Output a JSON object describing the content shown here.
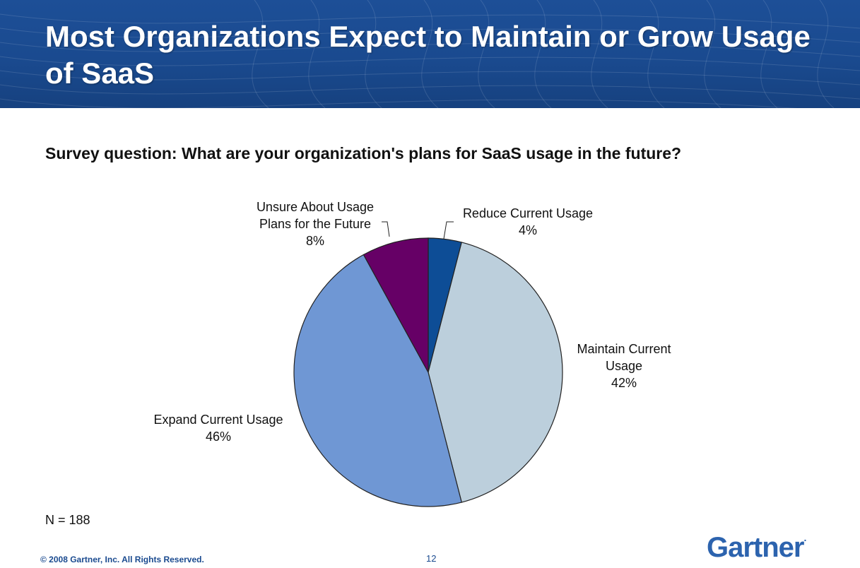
{
  "slide": {
    "title": "Most Organizations Expect to Maintain or Grow Usage of SaaS",
    "question": "Survey question: What are your organization's plans for SaaS usage in the future?",
    "n_label": "N = 188",
    "copyright": "© 2008 Gartner, Inc. All Rights Reserved.",
    "page_number": "12",
    "logo": "Gartner",
    "logo_mark": "."
  },
  "colors": {
    "header_blue": "#1a4a8f",
    "reduce": "#0d4d96",
    "maintain": "#bccfdc",
    "expand": "#6f97d4",
    "unsure": "#660066",
    "logo": "#2c63ae"
  },
  "chart_data": {
    "type": "pie",
    "title": "",
    "start": "12 o'clock, clockwise",
    "slices": [
      {
        "label_lines": [
          "Reduce Current Usage"
        ],
        "value": 4,
        "value_label": "4%",
        "color": "#0d4d96"
      },
      {
        "label_lines": [
          "Maintain Current",
          "Usage"
        ],
        "value": 42,
        "value_label": "42%",
        "color": "#bccfdc"
      },
      {
        "label_lines": [
          "Expand Current Usage"
        ],
        "value": 46,
        "value_label": "46%",
        "color": "#6f97d4"
      },
      {
        "label_lines": [
          "Unsure About Usage",
          "Plans for the Future"
        ],
        "value": 8,
        "value_label": "8%",
        "color": "#660066"
      }
    ]
  }
}
